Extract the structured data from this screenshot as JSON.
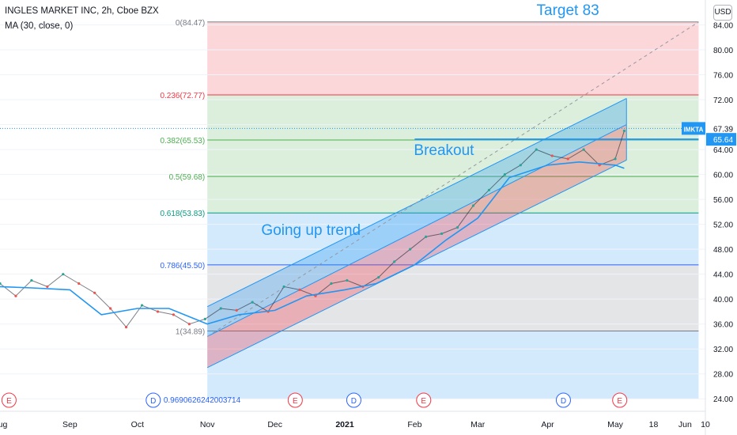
{
  "header": {
    "title": "INGLES MARKET INC, 2h, Cboe BZX",
    "indicator": "MA (30, close, 0)",
    "currency_button": "USD"
  },
  "colors": {
    "fib_red": "#f23645",
    "fib_green": "#4caf50",
    "fib_teal": "#089981",
    "fib_blue": "#2962ff",
    "fib_gray": "#787b86",
    "channel_blue": "#2196f3",
    "ma_line": "#2196f3",
    "candle_up": "#26a69a",
    "candle_down": "#ef5350",
    "annotation": "#2196f3",
    "price_tag": "#2196f3",
    "event_earnings": "#f23645",
    "event_dividend": "#2962ff"
  },
  "chart_data": {
    "type": "line",
    "symbol_tag": "IMKTA",
    "y_axis": {
      "ticks": [
        84.0,
        80.0,
        76.0,
        72.0,
        68.0,
        64.0,
        60.0,
        56.0,
        52.0,
        48.0,
        44.0,
        40.0,
        36.0,
        32.0,
        28.0,
        24.0
      ],
      "tick_labels": [
        "84.00",
        "80.00",
        "76.00",
        "72.00",
        "68.00",
        "64.00",
        "60.00",
        "56.00",
        "52.00",
        "48.00",
        "44.00",
        "40.00",
        "36.00",
        "32.00",
        "28.00",
        "24.00"
      ],
      "range": [
        22.0,
        88.0
      ],
      "side": "right"
    },
    "x_axis": {
      "range": [
        "2020-08-01",
        "2021-06-10"
      ],
      "ticks": [
        {
          "date": "2020-08-01",
          "label": "Aug",
          "bold": false
        },
        {
          "date": "2020-09-01",
          "label": "Sep",
          "bold": false
        },
        {
          "date": "2020-10-01",
          "label": "Oct",
          "bold": false
        },
        {
          "date": "2020-11-01",
          "label": "Nov",
          "bold": false
        },
        {
          "date": "2020-12-01",
          "label": "Dec",
          "bold": false
        },
        {
          "date": "2021-01-01",
          "label": "2021",
          "bold": true
        },
        {
          "date": "2021-02-01",
          "label": "Feb",
          "bold": false
        },
        {
          "date": "2021-03-01",
          "label": "Mar",
          "bold": false
        },
        {
          "date": "2021-04-01",
          "label": "Apr",
          "bold": false
        },
        {
          "date": "2021-05-01",
          "label": "May",
          "bold": false
        },
        {
          "date": "2021-05-18",
          "label": "18",
          "bold": false
        },
        {
          "date": "2021-06-01",
          "label": "Jun",
          "bold": false
        },
        {
          "date": "2021-06-10",
          "label": "10",
          "bold": false
        }
      ]
    },
    "price_tags": [
      {
        "label": "IMKTA",
        "value": 67.39,
        "text": "67.39"
      },
      {
        "value": 65.64,
        "text": "65.64"
      }
    ],
    "fib_retracement": {
      "start_date": "2020-11-01",
      "end_date": "2021-06-07",
      "levels": [
        {
          "label": "0(84.47)",
          "price": 84.47,
          "color": "#787b86"
        },
        {
          "label": "0.236(72.77)",
          "price": 72.77,
          "color": "#f23645"
        },
        {
          "label": "0.382(65.53)",
          "price": 65.53,
          "color": "#4caf50"
        },
        {
          "label": "0.5(59.68)",
          "price": 59.68,
          "color": "#4caf50"
        },
        {
          "label": "0.618(53.83)",
          "price": 53.83,
          "color": "#089981"
        },
        {
          "label": "0.786(45.50)",
          "price": 45.5,
          "color": "#2962ff"
        },
        {
          "label": "1(34.89)",
          "price": 34.89,
          "color": "#787b86"
        },
        {
          "label": "0.9690626242003714",
          "price": 24.0,
          "color": "#2962ff"
        }
      ],
      "zones": [
        {
          "from": 84.47,
          "to": 72.77,
          "color": "#f23645"
        },
        {
          "from": 72.77,
          "to": 53.83,
          "color": "#4caf50"
        },
        {
          "from": 53.83,
          "to": 45.5,
          "color": "#2196f3"
        },
        {
          "from": 45.5,
          "to": 34.89,
          "color": "#787b86"
        },
        {
          "from": 34.89,
          "to": 24.0,
          "color": "#2196f3"
        }
      ]
    },
    "channel": {
      "start_date": "2020-11-01",
      "end_date": "2021-05-06",
      "upper_start": 38.8,
      "upper_end": 72.2,
      "middle_start": 34.0,
      "middle_end": 68.0,
      "lower_start": 29.0,
      "lower_end": 62.3
    },
    "trend_extension": {
      "start_date": "2020-11-01",
      "start_price": 34.0,
      "end_date": "2021-06-07",
      "end_price": 84.47
    },
    "breakout_line": {
      "start_date": "2021-02-01",
      "end_date": "2021-06-07",
      "price": 65.64
    },
    "annotations": [
      {
        "text": "Target 83",
        "date": "2021-04-10",
        "price": 85.6
      },
      {
        "text": "Breakout",
        "date": "2021-02-14",
        "price": 63.1
      },
      {
        "text": "Going up trend",
        "date": "2020-12-17",
        "price": 50.3
      }
    ],
    "series": [
      {
        "name": "Price",
        "x": [
          "2020-08-01",
          "2020-08-08",
          "2020-08-15",
          "2020-08-22",
          "2020-08-29",
          "2020-09-05",
          "2020-09-12",
          "2020-09-19",
          "2020-09-26",
          "2020-10-03",
          "2020-10-10",
          "2020-10-17",
          "2020-10-24",
          "2020-10-31",
          "2020-11-07",
          "2020-11-14",
          "2020-11-21",
          "2020-11-28",
          "2020-12-05",
          "2020-12-12",
          "2020-12-19",
          "2020-12-26",
          "2021-01-02",
          "2021-01-09",
          "2021-01-16",
          "2021-01-23",
          "2021-01-30",
          "2021-02-06",
          "2021-02-13",
          "2021-02-20",
          "2021-02-27",
          "2021-03-06",
          "2021-03-13",
          "2021-03-20",
          "2021-03-27",
          "2021-04-03",
          "2021-04-10",
          "2021-04-17",
          "2021-04-24",
          "2021-05-01",
          "2021-05-05"
        ],
        "y": [
          42.5,
          40.5,
          43.0,
          42.0,
          44.0,
          42.5,
          41.0,
          38.5,
          35.5,
          39.0,
          38.0,
          37.5,
          36.0,
          36.8,
          38.5,
          38.2,
          39.5,
          38.0,
          42.0,
          41.5,
          40.5,
          42.5,
          43.0,
          42.0,
          43.5,
          46.0,
          48.0,
          50.0,
          50.5,
          51.5,
          55.0,
          57.5,
          60.0,
          61.5,
          64.0,
          63.0,
          62.5,
          64.0,
          61.5,
          62.5,
          67.0
        ]
      },
      {
        "name": "MA (30, close, 0)",
        "x": [
          "2020-08-01",
          "2020-08-15",
          "2020-09-01",
          "2020-09-15",
          "2020-10-01",
          "2020-10-15",
          "2020-11-01",
          "2020-11-15",
          "2020-12-01",
          "2020-12-15",
          "2021-01-01",
          "2021-01-15",
          "2021-02-01",
          "2021-02-15",
          "2021-03-01",
          "2021-03-15",
          "2021-04-01",
          "2021-04-15",
          "2021-05-01",
          "2021-05-05"
        ],
        "y": [
          42.0,
          41.8,
          41.5,
          37.5,
          38.5,
          38.5,
          36.0,
          37.5,
          38.2,
          40.5,
          41.5,
          42.5,
          45.5,
          49.5,
          53.0,
          59.5,
          61.5,
          62.0,
          61.5,
          61.0
        ]
      }
    ],
    "events": [
      {
        "date": "2020-08-05",
        "type": "E"
      },
      {
        "date": "2020-10-08",
        "type": "D"
      },
      {
        "date": "2020-12-10",
        "type": "E"
      },
      {
        "date": "2021-01-05",
        "type": "D"
      },
      {
        "date": "2021-02-05",
        "type": "E"
      },
      {
        "date": "2021-04-08",
        "type": "D"
      },
      {
        "date": "2021-05-03",
        "type": "E"
      }
    ]
  }
}
